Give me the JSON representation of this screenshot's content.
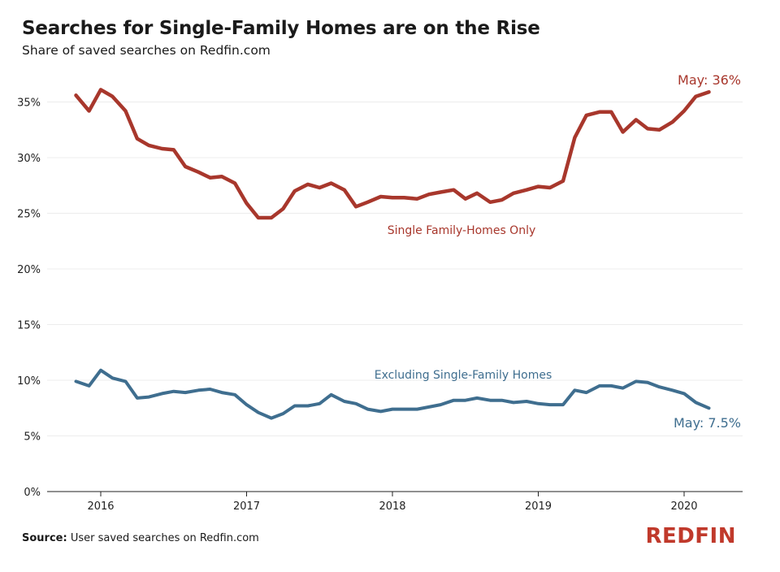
{
  "header": {
    "title": "Searches for Single-Family Homes are on the Rise",
    "subtitle": "Share of saved searches on Redfin.com"
  },
  "footer": {
    "source_label": "Source:",
    "source_text": "User saved searches on Redfin.com",
    "logo_text": "REDFIN"
  },
  "colors": {
    "series_sfh": "#a8372c",
    "series_excl": "#3f6e8f",
    "grid": "#ececec",
    "logo": "#c0392b"
  },
  "chart_data": {
    "type": "line",
    "xlim": [
      2015.6,
      2020.45
    ],
    "ylim": [
      0,
      38
    ],
    "y_ticks": [
      0,
      5,
      10,
      15,
      20,
      25,
      30,
      35
    ],
    "y_tick_labels": [
      "0%",
      "5%",
      "10%",
      "15%",
      "20%",
      "25%",
      "30%",
      "35%"
    ],
    "x_ticks": [
      2016,
      2017,
      2018,
      2019,
      2020
    ],
    "x_tick_labels": [
      "2016",
      "2017",
      "2018",
      "2019",
      "2020"
    ],
    "grid": "horizontal",
    "series": [
      {
        "name": "Single Family-Homes Only",
        "color": "#a8372c",
        "end_label": "May: 36%",
        "x": [
          2015.83,
          2015.92,
          2016.0,
          2016.08,
          2016.17,
          2016.25,
          2016.33,
          2016.42,
          2016.5,
          2016.58,
          2016.67,
          2016.75,
          2016.83,
          2016.92,
          2017.0,
          2017.08,
          2017.17,
          2017.25,
          2017.33,
          2017.42,
          2017.5,
          2017.58,
          2017.67,
          2017.75,
          2017.83,
          2017.92,
          2018.0,
          2018.08,
          2018.17,
          2018.25,
          2018.33,
          2018.42,
          2018.5,
          2018.58,
          2018.67,
          2018.75,
          2018.83,
          2018.92,
          2019.0,
          2019.08,
          2019.17,
          2019.25,
          2019.33,
          2019.42,
          2019.5,
          2019.58,
          2019.67,
          2019.75,
          2019.83,
          2019.92,
          2020.0,
          2020.08,
          2020.17
        ],
        "y": [
          35.6,
          34.2,
          36.1,
          35.5,
          34.2,
          31.7,
          31.1,
          30.8,
          30.7,
          29.2,
          28.7,
          28.2,
          28.3,
          27.7,
          25.9,
          24.6,
          24.6,
          25.4,
          27.0,
          27.6,
          27.3,
          27.7,
          27.1,
          25.6,
          26.0,
          26.5,
          26.4,
          26.4,
          26.3,
          26.7,
          26.9,
          27.1,
          26.3,
          26.8,
          26.0,
          26.2,
          26.8,
          27.1,
          27.4,
          27.3,
          27.9,
          31.8,
          33.8,
          34.1,
          34.1,
          32.3,
          33.4,
          32.6,
          32.5,
          33.2,
          34.2,
          35.5,
          35.9
        ]
      },
      {
        "name": "Excluding Single-Family Homes",
        "color": "#3f6e8f",
        "end_label": "May: 7.5%",
        "x": [
          2015.83,
          2015.92,
          2016.0,
          2016.08,
          2016.17,
          2016.25,
          2016.33,
          2016.42,
          2016.5,
          2016.58,
          2016.67,
          2016.75,
          2016.83,
          2016.92,
          2017.0,
          2017.08,
          2017.17,
          2017.25,
          2017.33,
          2017.42,
          2017.5,
          2017.58,
          2017.67,
          2017.75,
          2017.83,
          2017.92,
          2018.0,
          2018.08,
          2018.17,
          2018.25,
          2018.33,
          2018.42,
          2018.5,
          2018.58,
          2018.67,
          2018.75,
          2018.83,
          2018.92,
          2019.0,
          2019.08,
          2019.17,
          2019.25,
          2019.33,
          2019.42,
          2019.5,
          2019.58,
          2019.67,
          2019.75,
          2019.83,
          2019.92,
          2020.0,
          2020.08,
          2020.17
        ],
        "y": [
          9.9,
          9.5,
          10.9,
          10.2,
          9.9,
          8.4,
          8.5,
          8.8,
          9.0,
          8.9,
          9.1,
          9.2,
          8.9,
          8.7,
          7.8,
          7.1,
          6.6,
          7.0,
          7.7,
          7.7,
          7.9,
          8.7,
          8.1,
          7.9,
          7.4,
          7.2,
          7.4,
          7.4,
          7.4,
          7.6,
          7.8,
          8.2,
          8.2,
          8.4,
          8.2,
          8.2,
          8.0,
          8.1,
          7.9,
          7.8,
          7.8,
          9.1,
          8.9,
          9.5,
          9.5,
          9.3,
          9.9,
          9.8,
          9.4,
          9.1,
          8.8,
          8.0,
          7.5
        ]
      }
    ]
  }
}
